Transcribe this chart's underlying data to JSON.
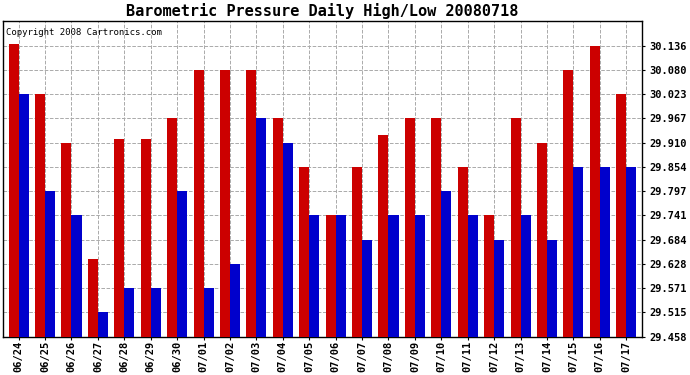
{
  "title": "Barometric Pressure Daily High/Low 20080718",
  "copyright": "Copyright 2008 Cartronics.com",
  "categories": [
    "06/24",
    "06/25",
    "06/26",
    "06/27",
    "06/28",
    "06/29",
    "06/30",
    "07/01",
    "07/02",
    "07/03",
    "07/04",
    "07/05",
    "07/06",
    "07/07",
    "07/08",
    "07/09",
    "07/10",
    "07/11",
    "07/12",
    "07/13",
    "07/14",
    "07/15",
    "07/16",
    "07/17"
  ],
  "highs": [
    30.14,
    30.023,
    29.91,
    29.64,
    29.92,
    29.92,
    29.967,
    30.08,
    30.08,
    30.08,
    29.967,
    29.854,
    29.741,
    29.854,
    29.928,
    29.967,
    29.967,
    29.854,
    29.741,
    29.967,
    29.91,
    30.08,
    30.136,
    30.023
  ],
  "lows": [
    30.023,
    29.797,
    29.741,
    29.515,
    29.571,
    29.571,
    29.797,
    29.571,
    29.628,
    29.967,
    29.91,
    29.741,
    29.741,
    29.684,
    29.741,
    29.741,
    29.797,
    29.741,
    29.684,
    29.741,
    29.684,
    29.854,
    29.854,
    29.854
  ],
  "ymin": 29.458,
  "ymax": 30.193,
  "yticks": [
    30.136,
    30.08,
    30.023,
    29.967,
    29.91,
    29.854,
    29.797,
    29.741,
    29.684,
    29.628,
    29.571,
    29.515,
    29.458
  ],
  "bar_width": 0.38,
  "high_color": "#cc0000",
  "low_color": "#0000cc",
  "background_color": "#ffffff",
  "grid_color": "#aaaaaa",
  "title_fontsize": 11,
  "tick_fontsize": 7.5
}
